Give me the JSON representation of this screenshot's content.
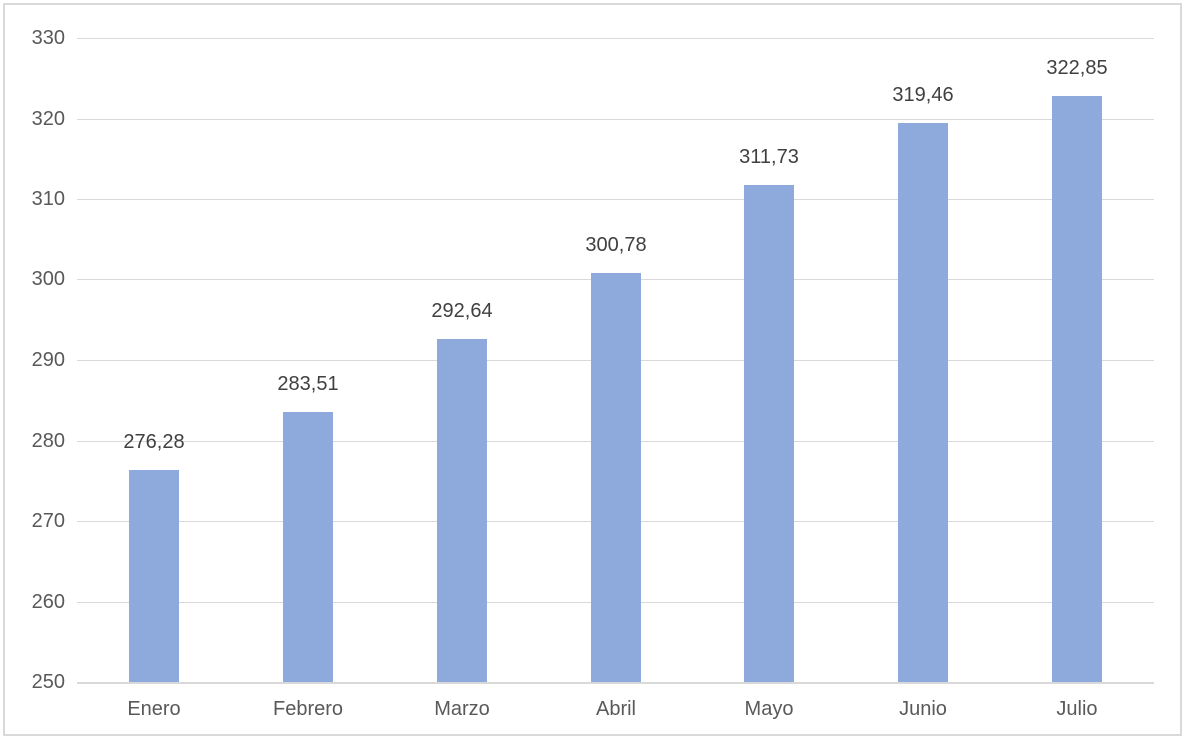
{
  "chart_data": {
    "type": "bar",
    "title": "",
    "xlabel": "",
    "ylabel": "",
    "categories": [
      "Enero",
      "Febrero",
      "Marzo",
      "Abril",
      "Mayo",
      "Junio",
      "Julio"
    ],
    "values": [
      276.28,
      283.51,
      292.64,
      300.78,
      311.73,
      319.46,
      322.85
    ],
    "value_labels": [
      "276,28",
      "283,51",
      "292,64",
      "300,78",
      "311,73",
      "319,46",
      "322,85"
    ],
    "y_ticks": [
      250,
      260,
      270,
      280,
      290,
      300,
      310,
      320,
      330
    ],
    "y_tick_labels": [
      "250",
      "260",
      "270",
      "280",
      "290",
      "300",
      "310",
      "320",
      "330"
    ],
    "ylim": [
      250,
      330
    ],
    "grid": "horizontal",
    "legend_position": "none",
    "decimal_separator": "comma"
  },
  "colors": {
    "bar_fill": "#8EA9DB",
    "gridline": "#D9D9D9",
    "axis_line": "#D9D9D9",
    "frame_border": "#D9D9D9",
    "tick_text": "#595959",
    "data_label_text": "#404040",
    "background": "#FFFFFF"
  }
}
